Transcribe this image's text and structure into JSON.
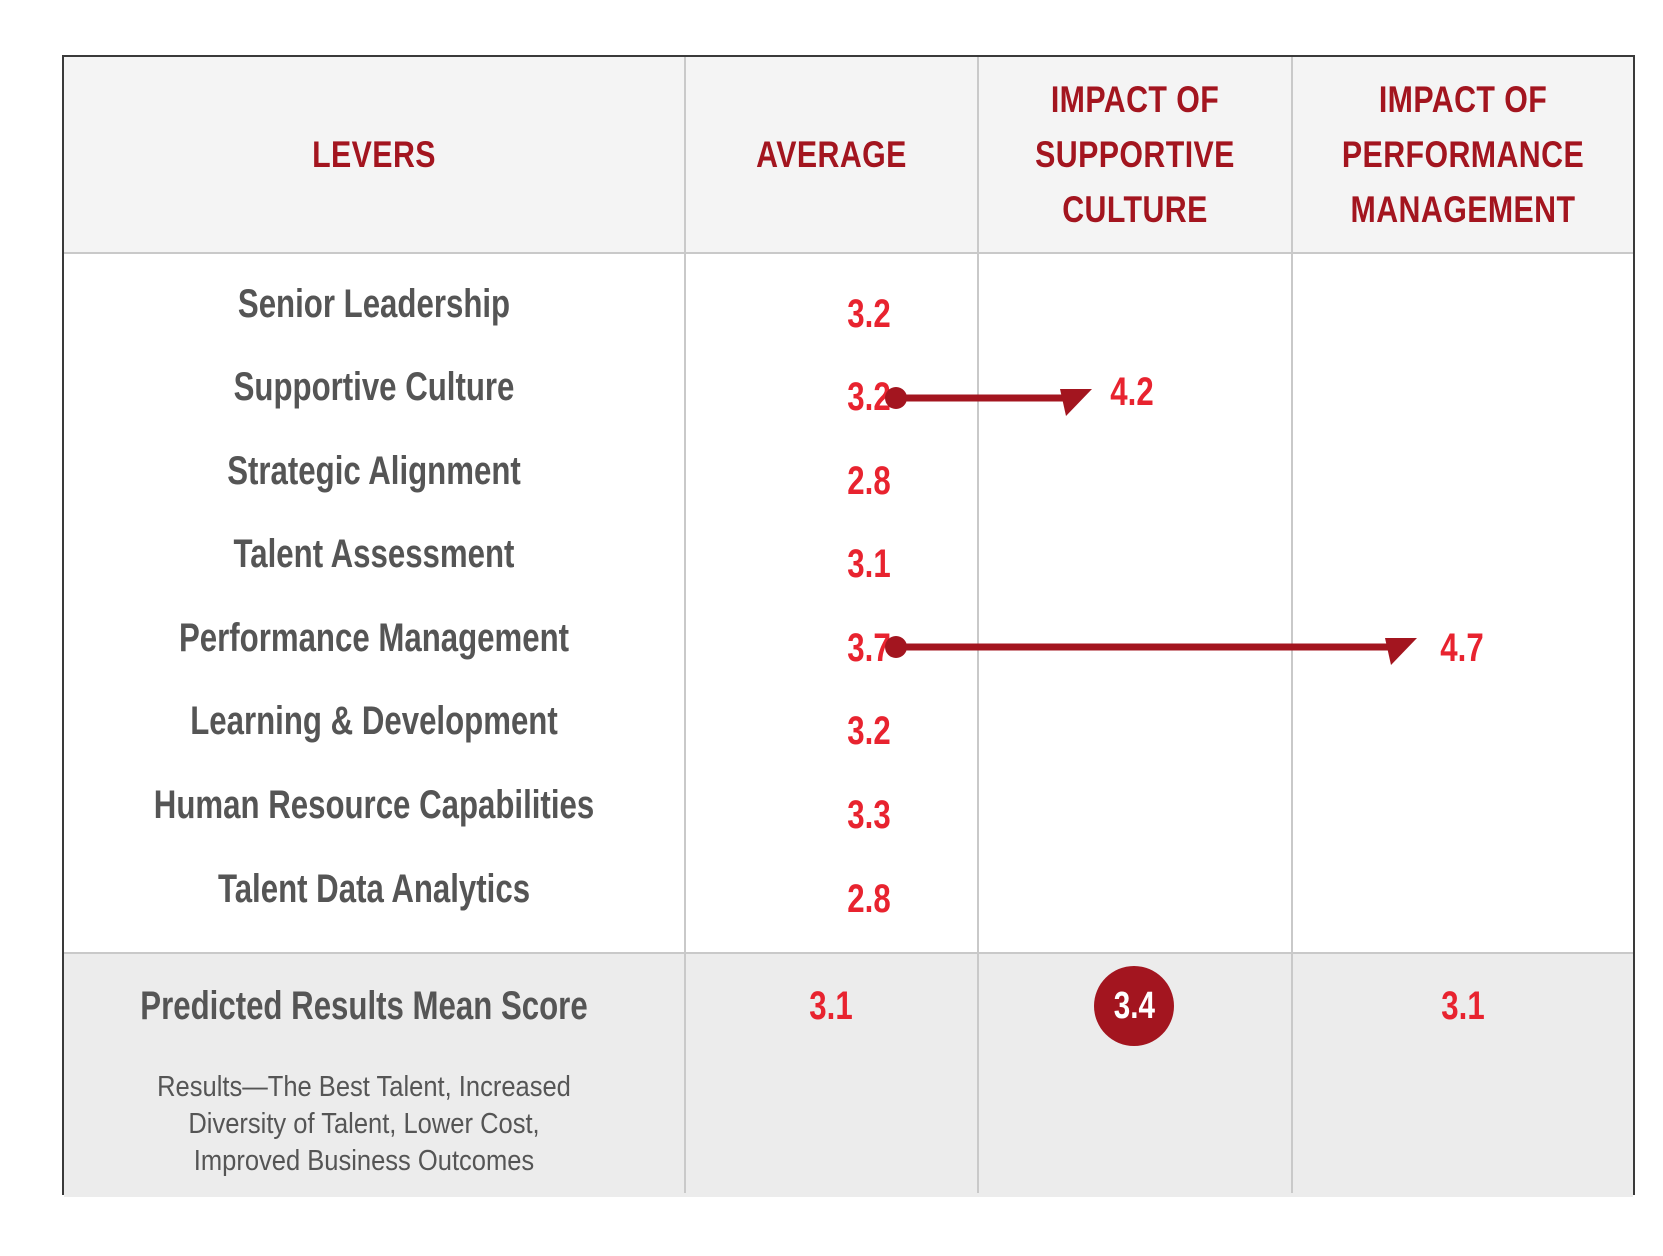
{
  "colors": {
    "header_text": "#a3151f",
    "value_text": "#e8232f",
    "label_text": "#555555",
    "arrow": "#a3151f",
    "badge": "#a3151f",
    "footer_bg": "#ececec"
  },
  "headers": {
    "levers": "LEVERS",
    "average": "AVERAGE",
    "impact_culture_l1": "IMPACT OF",
    "impact_culture_l2": "SUPPORTIVE",
    "impact_culture_l3": "CULTURE",
    "impact_perf_l1": "IMPACT OF",
    "impact_perf_l2": "PERFORMANCE",
    "impact_perf_l3": "MANAGEMENT"
  },
  "chart_data": {
    "type": "table",
    "columns": [
      "LEVERS",
      "AVERAGE",
      "IMPACT OF SUPPORTIVE CULTURE",
      "IMPACT OF PERFORMANCE MANAGEMENT"
    ],
    "rows": [
      {
        "lever": "Senior Leadership",
        "average": "3.2"
      },
      {
        "lever": "Supportive Culture",
        "average": "3.2",
        "impact_supportive_culture": "4.2"
      },
      {
        "lever": "Strategic Alignment",
        "average": "2.8"
      },
      {
        "lever": "Talent Assessment",
        "average": "3.1"
      },
      {
        "lever": "Performance Management",
        "average": "3.7",
        "impact_performance_management": "4.7"
      },
      {
        "lever": "Learning & Development",
        "average": "3.2"
      },
      {
        "lever": "Human Resource Capabilities",
        "average": "3.3"
      },
      {
        "lever": "Talent Data Analytics",
        "average": "2.8"
      }
    ],
    "summary": {
      "label": "Predicted Results Mean Score",
      "description_lines": [
        "Results—The Best Talent, Increased",
        "Diversity of Talent, Lower Cost,",
        "Improved Business Outcomes"
      ],
      "average": "3.1",
      "impact_supportive_culture": "3.4",
      "impact_performance_management": "3.1"
    }
  }
}
